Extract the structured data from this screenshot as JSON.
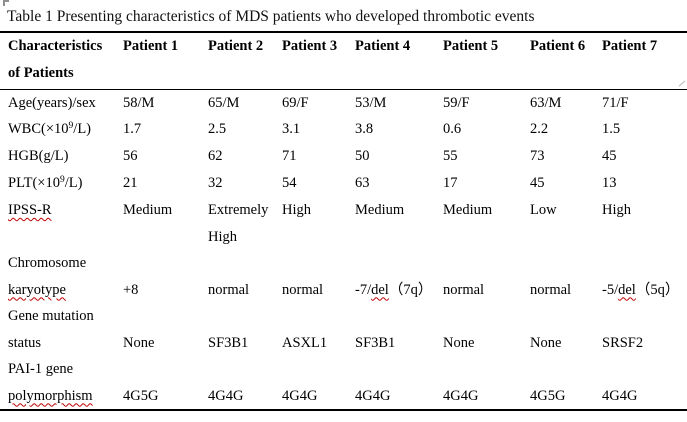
{
  "title": "Table 1 Presenting characteristics of MDS patients who developed thrombotic events",
  "table": {
    "header": {
      "label_lines": [
        "Characteristics",
        "of Patients"
      ],
      "columns": [
        "Patient 1",
        "Patient 2",
        "Patient 3",
        "Patient 4",
        "Patient 5",
        "Patient 6",
        "Patient 7"
      ]
    },
    "rows": [
      {
        "label": [
          "Age(years)/sex"
        ],
        "values": [
          [
            "58/M"
          ],
          [
            "65/M"
          ],
          [
            "69/F"
          ],
          [
            "53/M"
          ],
          [
            "59/F"
          ],
          [
            "63/M"
          ],
          [
            "71/F"
          ]
        ]
      },
      {
        "label": [
          "WBC(×10^9/L)"
        ],
        "values": [
          [
            "1.7"
          ],
          [
            "2.5"
          ],
          [
            "3.1"
          ],
          [
            "3.8"
          ],
          [
            "0.6"
          ],
          [
            "2.2"
          ],
          [
            "1.5"
          ]
        ]
      },
      {
        "label": [
          "HGB(g/L)"
        ],
        "values": [
          [
            "56"
          ],
          [
            "62"
          ],
          [
            "71"
          ],
          [
            "50"
          ],
          [
            "55"
          ],
          [
            "73"
          ],
          [
            "45"
          ]
        ]
      },
      {
        "label": [
          "PLT(×10^9/L)"
        ],
        "values": [
          [
            "21"
          ],
          [
            "32"
          ],
          [
            "54"
          ],
          [
            "63"
          ],
          [
            "17"
          ],
          [
            "45"
          ],
          [
            "13"
          ]
        ]
      },
      {
        "label": [
          "IPSS-R"
        ],
        "values": [
          [
            "Medium"
          ],
          [
            "Extremely",
            "High"
          ],
          [
            "High"
          ],
          [
            "Medium"
          ],
          [
            "Medium"
          ],
          [
            "Low"
          ],
          [
            "High"
          ]
        ]
      },
      {
        "label": [
          "Chromosome",
          "karyotype"
        ],
        "values": [
          [
            "+8"
          ],
          [
            "normal"
          ],
          [
            "normal"
          ],
          [
            "-7/del（7q）"
          ],
          [
            "normal"
          ],
          [
            "normal"
          ],
          [
            "-5/del（5q）"
          ]
        ]
      },
      {
        "label": [
          "Gene mutation",
          "status"
        ],
        "values": [
          [
            "None"
          ],
          [
            "SF3B1"
          ],
          [
            "ASXL1"
          ],
          [
            "SF3B1"
          ],
          [
            "None"
          ],
          [
            "None"
          ],
          [
            "SRSF2"
          ]
        ]
      },
      {
        "label": [
          "PAI-1 gene",
          "polymorphism"
        ],
        "values": [
          [
            "4G5G"
          ],
          [
            "4G4G"
          ],
          [
            "4G4G"
          ],
          [
            "4G4G"
          ],
          [
            "4G4G"
          ],
          [
            "4G5G"
          ],
          [
            "4G4G"
          ]
        ]
      }
    ],
    "spellcheck_words": [
      "polymorphism",
      "karyotype",
      "IPSS-R",
      "del"
    ],
    "spellcheck_color": "#c00000",
    "text_color": "#000000",
    "rule_color": "#000000"
  }
}
